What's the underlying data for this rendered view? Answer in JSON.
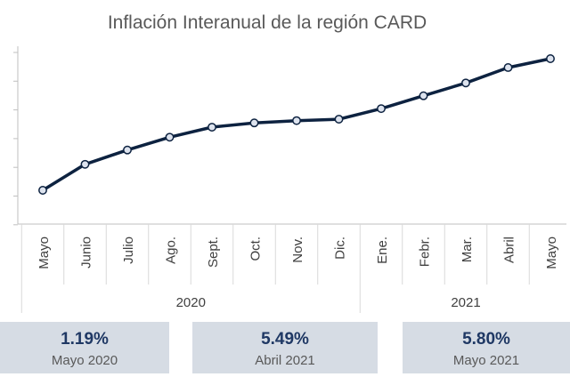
{
  "chart_data": {
    "type": "line",
    "title": "Inflación Interanual de la región CARD",
    "categories": [
      "Mayo",
      "Junio",
      "Julio",
      "Ago.",
      "Sept.",
      "Oct.",
      "Nov.",
      "Dic.",
      "Ene.",
      "Febr.",
      "Mar.",
      "Abril",
      "Mayo"
    ],
    "groups": [
      {
        "label": "2020",
        "count": 8
      },
      {
        "label": "2021",
        "count": 5
      }
    ],
    "series": [
      {
        "values": [
          1.19,
          2.1,
          2.6,
          3.05,
          3.4,
          3.55,
          3.63,
          3.68,
          4.05,
          4.5,
          4.95,
          5.49,
          5.8
        ]
      }
    ],
    "line_color": "#0d2240",
    "marker_fill": "#dde3ee",
    "grid": false
  },
  "stats": [
    {
      "value": "1.19%",
      "label": "Mayo 2020"
    },
    {
      "value": "5.49%",
      "label": "Abril 2021"
    },
    {
      "value": "5.80%",
      "label": "Mayo 2021"
    }
  ]
}
